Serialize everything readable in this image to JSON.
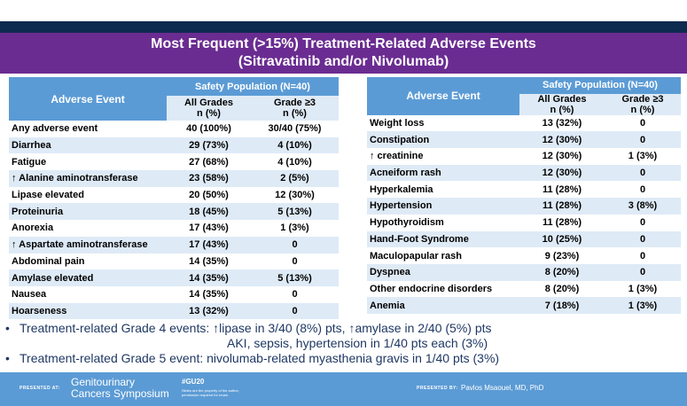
{
  "title_line1": "Most Frequent (>15%) Treatment-Related Adverse Events",
  "title_line2": "(Sitravatinib and/or Nivolumab)",
  "table_header": {
    "event": "Adverse Event",
    "population": "Safety Population (N=40)",
    "all_grades": "All Grades",
    "all_grades_unit": "n (%)",
    "grade3": "Grade ≥3",
    "grade3_unit": "n (%)"
  },
  "left_rows": [
    {
      "event": "Any adverse event",
      "all": "40 (100%)",
      "g3": "30/40 (75%)"
    },
    {
      "event": "Diarrhea",
      "all": "29 (73%)",
      "g3": "4 (10%)"
    },
    {
      "event": "Fatigue",
      "all": "27 (68%)",
      "g3": "4 (10%)"
    },
    {
      "event": "↑ Alanine aminotransferase",
      "all": "23 (58%)",
      "g3": "2 (5%)"
    },
    {
      "event": "Lipase elevated",
      "all": "20 (50%)",
      "g3": "12 (30%)"
    },
    {
      "event": "Proteinuria",
      "all": "18 (45%)",
      "g3": "5 (13%)"
    },
    {
      "event": "Anorexia",
      "all": "17 (43%)",
      "g3": "1 (3%)"
    },
    {
      "event": "↑ Aspartate aminotransferase",
      "all": "17 (43%)",
      "g3": "0"
    },
    {
      "event": "Abdominal pain",
      "all": "14 (35%)",
      "g3": "0"
    },
    {
      "event": "Amylase elevated",
      "all": "14 (35%)",
      "g3": "5 (13%)"
    },
    {
      "event": "Nausea",
      "all": "14 (35%)",
      "g3": "0"
    },
    {
      "event": "Hoarseness",
      "all": "13 (32%)",
      "g3": "0"
    }
  ],
  "right_rows": [
    {
      "event": "Weight loss",
      "all": "13 (32%)",
      "g3": "0"
    },
    {
      "event": "Constipation",
      "all": "12 (30%)",
      "g3": "0"
    },
    {
      "event": "↑ creatinine",
      "all": "12 (30%)",
      "g3": "1 (3%)"
    },
    {
      "event": "Acneiform rash",
      "all": "12 (30%)",
      "g3": "0"
    },
    {
      "event": "Hyperkalemia",
      "all": "11 (28%)",
      "g3": "0"
    },
    {
      "event": "Hypertension",
      "all": "11 (28%)",
      "g3": "3 (8%)"
    },
    {
      "event": "Hypothyroidism",
      "all": "11 (28%)",
      "g3": "0"
    },
    {
      "event": "Hand-Foot Syndrome",
      "all": "10 (25%)",
      "g3": "0"
    },
    {
      "event": "Maculopapular rash",
      "all": "9 (23%)",
      "g3": "0"
    },
    {
      "event": "Dyspnea",
      "all": "8 (20%)",
      "g3": "0"
    },
    {
      "event": "Other endocrine disorders",
      "all": "8 (20%)",
      "g3": "1 (3%)"
    },
    {
      "event": "Anemia",
      "all": "7 (18%)",
      "g3": "1 (3%)"
    }
  ],
  "bullets": {
    "b1_line1": "Treatment-related Grade 4 events: ↑lipase in 3/40 (8%) pts, ↑amylase in 2/40 (5%) pts",
    "b1_line2": "AKI, sepsis, hypertension in 1/40 pts each (3%)",
    "b2": "Treatment-related Grade 5 event: nivolumab-related myasthenia gravis in 1/40 pts (3%)"
  },
  "footer": {
    "presented_at": "PRESENTED AT:",
    "meeting_line1": "Genitourinary",
    "meeting_line2": "Cancers Symposium",
    "hashtag": "#GU20",
    "disclaimer": "Slides are the property of the author, permission required for reuse.",
    "presented_by": "PRESENTED BY:",
    "presenter": "Pavlos Msaouel, MD, PhD"
  },
  "colors": {
    "title_bg": "#6a2c91",
    "header_blue": "#5b9bd5",
    "row_alt": "#deeaf6",
    "navy": "#0d2a4f"
  }
}
